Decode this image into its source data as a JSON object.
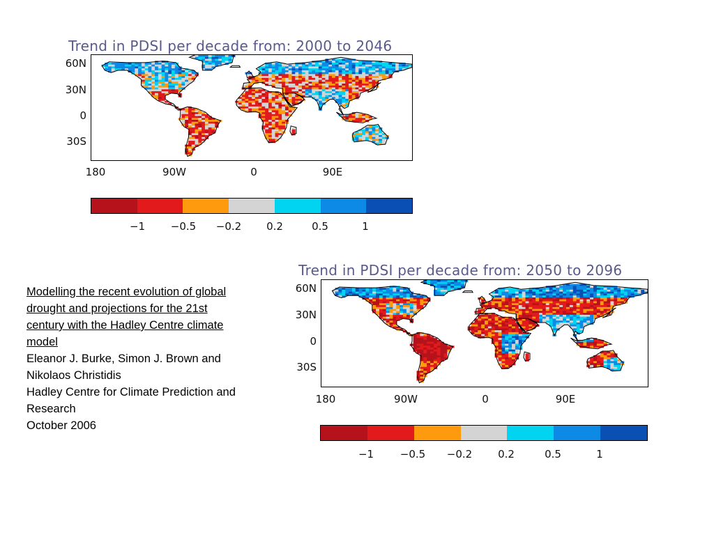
{
  "maps": [
    {
      "title": "Trend in PDSI per decade from: 2000 to 2046",
      "lat_labels": [
        "60N",
        "30N",
        "0",
        "30S"
      ],
      "lon_labels": [
        "180",
        "90W",
        "0",
        "90E"
      ],
      "colorbar_ticks": [
        "−1",
        "−0.5",
        "−0.2",
        "0.2",
        "0.5",
        "1"
      ],
      "variant": "early"
    },
    {
      "title": "Trend in PDSI per decade from: 2050 to 2096",
      "lat_labels": [
        "60N",
        "30N",
        "0",
        "30S"
      ],
      "lon_labels": [
        "180",
        "90W",
        "0",
        "90E"
      ],
      "colorbar_ticks": [
        "−1",
        "−0.5",
        "−0.2",
        "0.2",
        "0.5",
        "1"
      ],
      "variant": "late"
    }
  ],
  "colorbar_colors": [
    "#b5121b",
    "#e31a1c",
    "#fd9a0e",
    "#d4d4d4",
    "#00d4f0",
    "#0d8ae6",
    "#0a4fb4"
  ],
  "citation": {
    "title": "Modelling the recent evolution of global drought and projections for the 21st century with the Hadley Centre climate model",
    "authors": "Eleanor J. Burke, Simon J. Brown and Nikolaos Christidis",
    "institution": "Hadley Centre for Climate Prediction and Research",
    "date": "October 2006"
  }
}
